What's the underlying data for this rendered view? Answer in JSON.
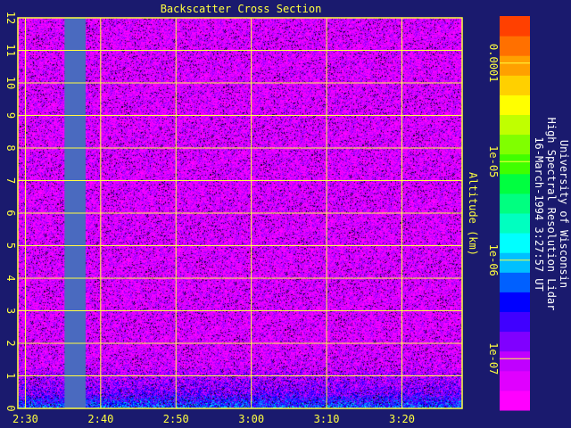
{
  "chart_data": {
    "type": "heatmap",
    "title": "Backscatter Cross Section",
    "ylabel": "Altitude (km)",
    "xlabel": "",
    "x_ticks": [
      "2:30",
      "2:40",
      "2:50",
      "3:00",
      "3:10",
      "3:20"
    ],
    "x_tick_minutes": [
      150,
      160,
      170,
      180,
      190,
      200
    ],
    "xlim_minutes": [
      149,
      208
    ],
    "y_ticks": [
      0,
      1,
      2,
      3,
      4,
      5,
      6,
      7,
      8,
      9,
      10,
      11,
      12
    ],
    "ylim": [
      0,
      12
    ],
    "grid": true,
    "data_gap_minutes": [
      155.2,
      158.0
    ],
    "colorbar": {
      "scale": "log",
      "range": [
        3e-08,
        0.0003
      ],
      "tick_labels": [
        "0.0001",
        "1e-05",
        "1e-06",
        "1e-07"
      ],
      "tick_values": [
        0.0001,
        1e-05,
        1e-06,
        1e-07
      ],
      "colors": [
        "#ff00ff",
        "#e000ff",
        "#c000ff",
        "#8000ff",
        "#4000ff",
        "#0000ff",
        "#0060ff",
        "#00c0ff",
        "#00ffff",
        "#00ffc0",
        "#00ff80",
        "#00ff40",
        "#40ff00",
        "#80ff00",
        "#c0ff00",
        "#ffff00",
        "#ffd000",
        "#ffa000",
        "#ff7000",
        "#ff4000"
      ]
    },
    "profile_levels": [
      {
        "altitude_km": 0.0,
        "value": 6e-07
      },
      {
        "altitude_km": 0.5,
        "value": 1.5e-07
      },
      {
        "altitude_km": 1.0,
        "value": 1e-07
      },
      {
        "altitude_km": 1.3,
        "value": 7e-08
      },
      {
        "altitude_km": 2.0,
        "value": 6e-08
      },
      {
        "altitude_km": 12.0,
        "value": 6e-08
      }
    ]
  },
  "annotations": {
    "line1": "University of Wisconsin",
    "line2": "High Spectral Resolution Lidar",
    "line3": "16-March-1994  3:27:57 UT"
  },
  "colors": {
    "background": "#1a1a6e",
    "grid": "#ffff40",
    "gap": "#4a6abf"
  }
}
